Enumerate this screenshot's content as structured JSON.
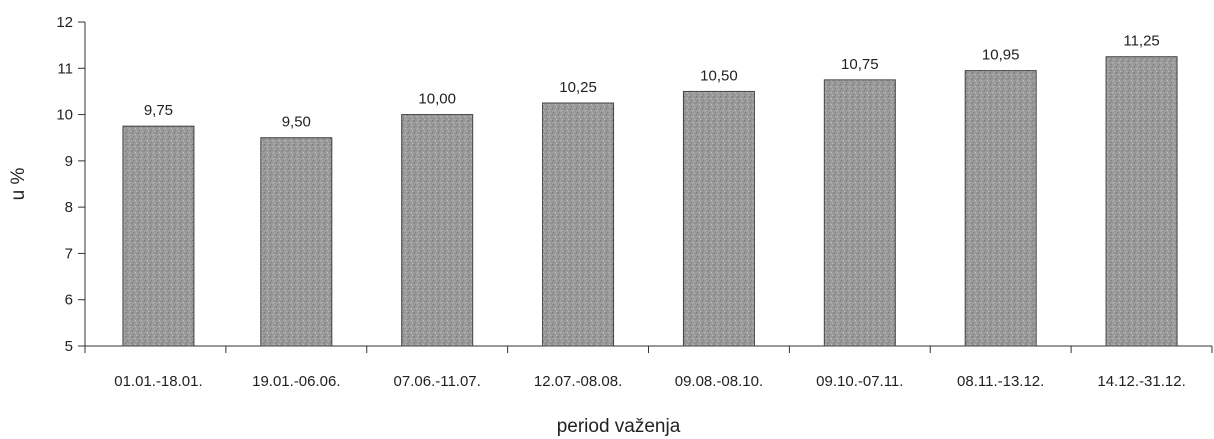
{
  "chart_data": {
    "type": "bar",
    "categories": [
      "01.01.-18.01.",
      "19.01.-06.06.",
      "07.06.-11.07.",
      "12.07.-08.08.",
      "09.08.-08.10.",
      "09.10.-07.11.",
      "08.11.-13.12.",
      "14.12.-31.12."
    ],
    "values": [
      9.75,
      9.5,
      10.0,
      10.25,
      10.5,
      10.75,
      10.95,
      11.25
    ],
    "value_labels": [
      "9,75",
      "9,50",
      "10,00",
      "10,25",
      "10,50",
      "10,75",
      "10,95",
      "11,25"
    ],
    "title": "",
    "xlabel": "period važenja",
    "ylabel": "u %",
    "ylim": [
      5,
      12
    ],
    "yticks": [
      5,
      6,
      7,
      8,
      9,
      10,
      11,
      12
    ],
    "grid": false,
    "bar_color": "#9a9a9a"
  }
}
